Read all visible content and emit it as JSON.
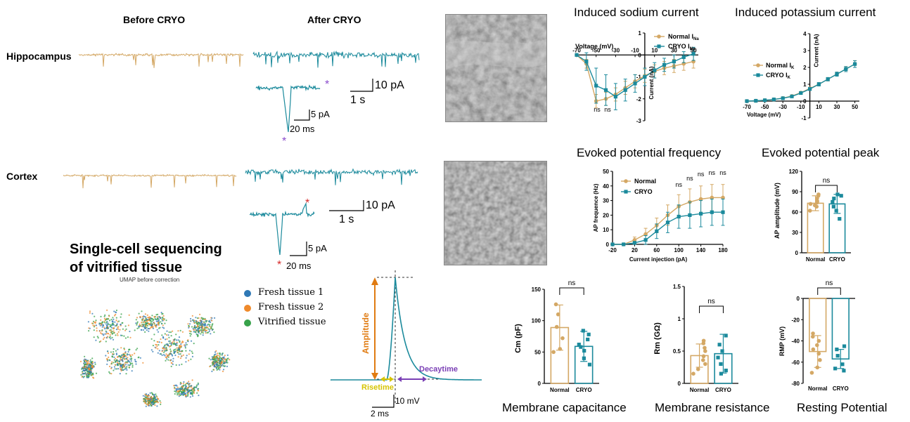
{
  "ephys": {
    "col_before": "Before CRYO",
    "col_after": "After CRYO",
    "row_hippocampus": "Hippocampus",
    "row_cortex": "Cortex",
    "scale_pa_main": "10 pA",
    "scale_s_main": "1 s",
    "scale_pa_inset": "5 pA",
    "scale_ms_inset": "20 ms",
    "star": "*",
    "colors": {
      "normal": "#d4a865",
      "cryo": "#1b8a9c",
      "purple": "#8a4ccc",
      "red": "#d62828"
    }
  },
  "scseq": {
    "title_line1": "Single-cell sequencing",
    "title_line2": "of vitrified tissue",
    "umap_caption": "UMAP before correction",
    "legend": [
      {
        "label": "Fresh tissue 1",
        "color": "#2f78b5"
      },
      {
        "label": "Fresh tissue 2",
        "color": "#ef8a2b"
      },
      {
        "label": "Vitrified tissue",
        "color": "#37a24a"
      }
    ]
  },
  "ap_diagram": {
    "amplitude": "Amplitude",
    "risetime": "Risetime",
    "decaytime": "Decaytime",
    "scale_mv": "10 mV",
    "scale_ms": "2 ms",
    "colors": {
      "amplitude": "#e07b12",
      "risetime": "#d6c400",
      "decay": "#7a3fb5",
      "trace": "#1b8a9c"
    }
  },
  "chart_data": [
    {
      "id": "sodium",
      "type": "line",
      "title": "Induced sodium current",
      "xlabel": "Voltage (mV)",
      "ylabel": "Current (nA)",
      "xlim": [
        -70,
        55
      ],
      "ylim": [
        -3,
        1
      ],
      "xticks": [
        -70,
        -50,
        -30,
        -10,
        10,
        30,
        50
      ],
      "yticks": [
        -3,
        -2,
        -1,
        0,
        1
      ],
      "legend": [
        "Normal I",
        "CRYO I"
      ],
      "legend_sub": "Na",
      "annotations": [
        "ns",
        "ns"
      ],
      "x": [
        -70,
        -60,
        -50,
        -40,
        -30,
        -20,
        -10,
        0,
        10,
        20,
        30,
        40,
        50
      ],
      "series": [
        {
          "name": "Normal",
          "values": [
            0,
            -0.4,
            -2.1,
            -2.0,
            -1.8,
            -1.5,
            -1.2,
            -0.95,
            -0.75,
            -0.6,
            -0.5,
            -0.4,
            -0.3
          ],
          "err": [
            0,
            0.2,
            0.3,
            0.3,
            0.3,
            0.3,
            0.3,
            0.3,
            0.3,
            0.3,
            0.3,
            0.3,
            0.3
          ]
        },
        {
          "name": "CRYO",
          "values": [
            0,
            -0.3,
            -1.4,
            -1.6,
            -1.9,
            -1.6,
            -1.3,
            -1.0,
            -0.7,
            -0.45,
            -0.3,
            -0.1,
            0.05
          ],
          "err": [
            0,
            0.4,
            0.8,
            0.7,
            0.6,
            0.5,
            0.4,
            0.4,
            0.35,
            0.3,
            0.3,
            0.25,
            0.3
          ]
        }
      ]
    },
    {
      "id": "potassium",
      "type": "line",
      "title": "Induced potassium current",
      "xlabel": "Voltage (mV)",
      "ylabel": "Current (nA)",
      "xlim": [
        -70,
        55
      ],
      "ylim": [
        -1,
        4
      ],
      "xticks": [
        -70,
        -50,
        -30,
        -10,
        10,
        30,
        50
      ],
      "yticks": [
        -1,
        0,
        1,
        2,
        3,
        4
      ],
      "legend": [
        "Normal I",
        "CRYO I"
      ],
      "legend_sub": "K",
      "x": [
        -70,
        -60,
        -50,
        -40,
        -30,
        -20,
        -10,
        0,
        10,
        20,
        30,
        40,
        50
      ],
      "series": [
        {
          "name": "Normal",
          "values": [
            0,
            0.02,
            0.05,
            0.1,
            0.18,
            0.3,
            0.5,
            0.75,
            1.0,
            1.3,
            1.6,
            1.9,
            2.2
          ],
          "err": [
            0,
            0,
            0.02,
            0.03,
            0.04,
            0.05,
            0.06,
            0.08,
            0.1,
            0.1,
            0.12,
            0.15,
            0.2
          ]
        },
        {
          "name": "CRYO",
          "values": [
            0,
            0.02,
            0.05,
            0.1,
            0.17,
            0.28,
            0.48,
            0.72,
            1.0,
            1.3,
            1.6,
            1.9,
            2.2
          ],
          "err": [
            0,
            0,
            0.02,
            0.03,
            0.04,
            0.05,
            0.06,
            0.08,
            0.1,
            0.1,
            0.12,
            0.15,
            0.2
          ]
        }
      ]
    },
    {
      "id": "frequency",
      "type": "line",
      "title": "Evoked potential frequency",
      "xlabel": "Current injection (pA)",
      "ylabel": "AP frequence (Hz)",
      "xlim": [
        -20,
        180
      ],
      "ylim": [
        0,
        50
      ],
      "xticks": [
        -20,
        20,
        60,
        100,
        140,
        180
      ],
      "yticks": [
        0,
        10,
        20,
        30,
        40,
        50
      ],
      "legend": [
        "Normal",
        "CRYO"
      ],
      "annotations": [
        "ns",
        "ns",
        "ns",
        "ns",
        "ns"
      ],
      "x": [
        -20,
        0,
        20,
        40,
        60,
        80,
        100,
        120,
        140,
        160,
        180
      ],
      "series": [
        {
          "name": "Normal",
          "values": [
            0,
            0,
            3,
            7,
            13,
            20,
            26,
            29,
            31,
            32,
            32
          ],
          "err": [
            0,
            0,
            2,
            4,
            5,
            7,
            8,
            9,
            9,
            9,
            9
          ]
        },
        {
          "name": "CRYO",
          "values": [
            0,
            0,
            1,
            3,
            9,
            15,
            19,
            20,
            21,
            22,
            22
          ],
          "err": [
            0,
            0,
            1,
            3,
            5,
            7,
            8,
            9,
            9,
            9,
            9
          ]
        }
      ]
    },
    {
      "id": "peak",
      "type": "bar",
      "title": "Evoked potential peak",
      "ylabel": "AP amplitude (mV)",
      "ylim": [
        0,
        120
      ],
      "yticks": [
        0,
        30,
        60,
        90,
        120
      ],
      "categories": [
        "Normal",
        "CRYO"
      ],
      "values": [
        73,
        72
      ],
      "err": [
        11,
        14
      ],
      "points": [
        [
          62,
          68,
          70,
          72,
          74,
          76,
          80,
          84,
          86
        ],
        [
          50,
          62,
          68,
          75,
          80,
          84,
          86
        ]
      ],
      "annotations": [
        "ns"
      ]
    },
    {
      "id": "capacitance",
      "type": "bar",
      "title": "Membrane capacitance",
      "ylabel": "Cm (pF)",
      "ylim": [
        0,
        150
      ],
      "yticks": [
        0,
        50,
        100,
        150
      ],
      "categories": [
        "Normal",
        "CRYO"
      ],
      "values": [
        89,
        59
      ],
      "err": [
        36,
        24
      ],
      "points": [
        [
          50,
          55,
          72,
          90,
          110,
          126
        ],
        [
          30,
          40,
          52,
          58,
          62,
          70,
          78,
          84
        ]
      ],
      "annotations": [
        "ns"
      ]
    },
    {
      "id": "resistance",
      "type": "bar",
      "title": "Membrane resistance",
      "ylabel": "Rm (GΩ)",
      "ylim": [
        0,
        1.5
      ],
      "yticks": [
        0,
        0.5,
        1.0,
        1.5
      ],
      "categories": [
        "Normal",
        "CRYO"
      ],
      "values": [
        0.43,
        0.46
      ],
      "err": [
        0.18,
        0.3
      ],
      "points": [
        [
          0.15,
          0.22,
          0.3,
          0.36,
          0.42,
          0.5,
          0.55,
          0.62,
          0.66
        ],
        [
          0.15,
          0.2,
          0.3,
          0.4,
          0.5,
          0.6,
          0.74
        ]
      ],
      "annotations": [
        "ns"
      ]
    },
    {
      "id": "rmp",
      "type": "bar",
      "title": "Resting Potential",
      "ylabel": "RMP (mV)",
      "ylim": [
        -80,
        0
      ],
      "yticks": [
        -80,
        -60,
        -40,
        -20,
        0
      ],
      "categories": [
        "Normal",
        "CRYO"
      ],
      "values": [
        -50,
        -57
      ],
      "err": [
        15,
        9
      ],
      "points": [
        [
          -70,
          -65,
          -58,
          -52,
          -48,
          -44,
          -40,
          -36,
          -33
        ],
        [
          -68,
          -66,
          -62,
          -54,
          -48,
          -45
        ]
      ],
      "annotations": [
        "ns"
      ]
    }
  ]
}
